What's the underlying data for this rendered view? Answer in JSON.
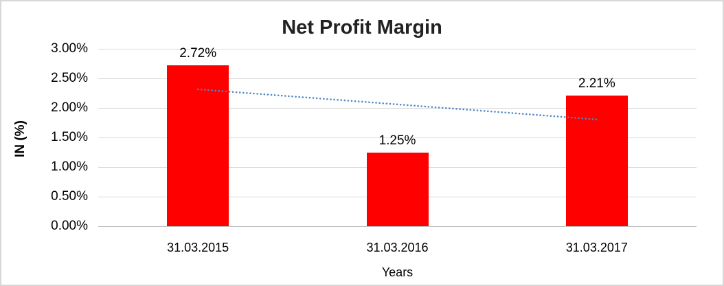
{
  "chart_data": {
    "type": "bar",
    "title": "Net Profit Margin",
    "categories": [
      "31.03.2015",
      "31.03.2016",
      "31.03.2017"
    ],
    "values": [
      2.72,
      1.25,
      2.21
    ],
    "data_labels": [
      "2.72%",
      "1.25%",
      "2.21%"
    ],
    "xlabel": "Years",
    "ylabel": "IN (%)",
    "ylim": [
      0,
      3
    ],
    "ytick_step": 0.5,
    "yticks": [
      0,
      0.5,
      1.0,
      1.5,
      2.0,
      2.5,
      3.0
    ],
    "ytick_labels": [
      "0.00%",
      "0.50%",
      "1.00%",
      "1.50%",
      "2.00%",
      "2.50%",
      "3.00%"
    ],
    "grid": true,
    "legend": "none",
    "bar_color": "#ff0000",
    "gridline_color": "#d9d9d9",
    "axis_line_color": "#bfbfbf",
    "title_color": "#222222",
    "text_color": "#000000",
    "trendline": {
      "type": "linear",
      "style": "dotted",
      "color": "#4f87c7",
      "start_value": 2.315,
      "end_value": 1.805
    }
  }
}
